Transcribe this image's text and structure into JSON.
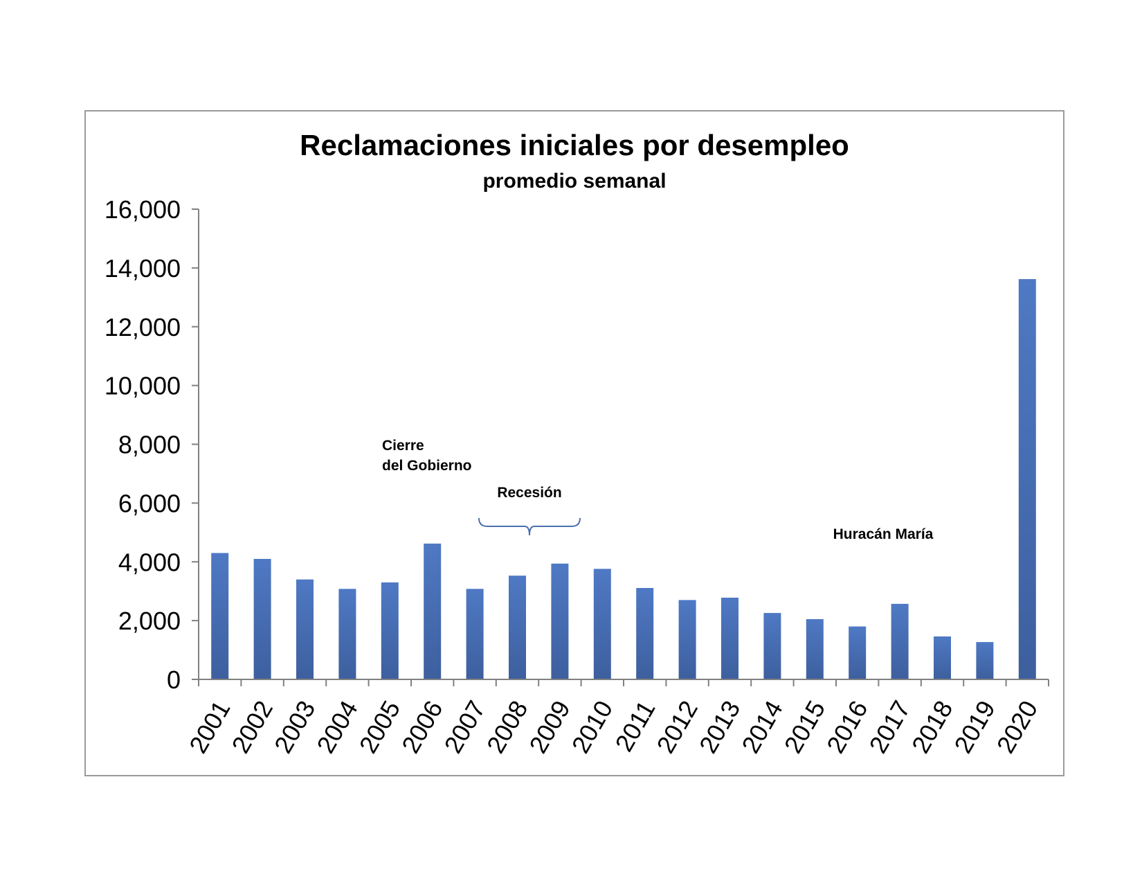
{
  "chart_data": {
    "type": "bar",
    "title": "Reclamaciones iniciales por desempleo",
    "subtitle": "promedio semanal",
    "categories": [
      "2001",
      "2002",
      "2003",
      "2004",
      "2005",
      "2006",
      "2007",
      "2008",
      "2009",
      "2010",
      "2011",
      "2012",
      "2013",
      "2014",
      "2015",
      "2016",
      "2017",
      "2018",
      "2019",
      "2020"
    ],
    "values": [
      4300,
      4100,
      3400,
      3080,
      3300,
      4620,
      3080,
      3530,
      3940,
      3760,
      3110,
      2700,
      2780,
      2260,
      2050,
      1800,
      2570,
      1460,
      1270,
      13620
    ],
    "ylim": [
      0,
      16000
    ],
    "yticks": [
      "0",
      "2,000",
      "4,000",
      "6,000",
      "8,000",
      "10,000",
      "12,000",
      "14,000",
      "16,000"
    ],
    "xlabel": "",
    "ylabel": "",
    "grid": false,
    "legend": "none",
    "bar_color": "#4f79c4",
    "annotations": [
      {
        "lines": [
          "Cierre",
          "del Gobierno"
        ]
      },
      {
        "lines": [
          "Recesión"
        ]
      },
      {
        "lines": [
          "Huracán María"
        ]
      }
    ]
  }
}
